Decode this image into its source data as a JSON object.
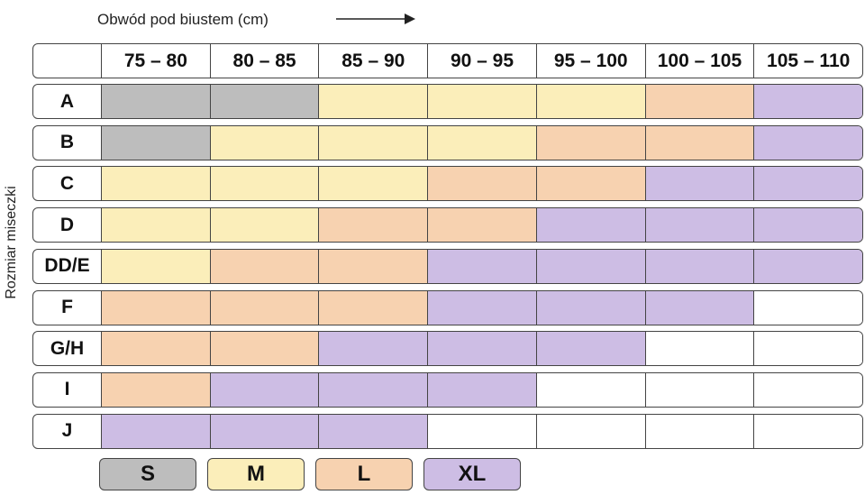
{
  "chart_data": {
    "type": "table",
    "xlabel": "Obwód pod biustem (cm)",
    "ylabel": "Rozmiar miseczki",
    "columns": [
      "75 – 80",
      "80 – 85",
      "85 – 90",
      "90 – 95",
      "95 – 100",
      "100 – 105",
      "105 – 110"
    ],
    "rows": [
      {
        "label": "A",
        "cells": [
          "S",
          "S",
          "M",
          "M",
          "M",
          "L",
          "XL"
        ]
      },
      {
        "label": "B",
        "cells": [
          "S",
          "M",
          "M",
          "M",
          "L",
          "L",
          "XL"
        ]
      },
      {
        "label": "C",
        "cells": [
          "M",
          "M",
          "M",
          "L",
          "L",
          "XL",
          "XL"
        ]
      },
      {
        "label": "D",
        "cells": [
          "M",
          "M",
          "L",
          "L",
          "XL",
          "XL",
          "XL"
        ]
      },
      {
        "label": "DD/E",
        "cells": [
          "M",
          "L",
          "L",
          "XL",
          "XL",
          "XL",
          "XL"
        ]
      },
      {
        "label": "F",
        "cells": [
          "L",
          "L",
          "L",
          "XL",
          "XL",
          "XL",
          ""
        ]
      },
      {
        "label": "G/H",
        "cells": [
          "L",
          "L",
          "XL",
          "XL",
          "XL",
          "",
          ""
        ]
      },
      {
        "label": "I",
        "cells": [
          "L",
          "XL",
          "XL",
          "XL",
          "",
          "",
          ""
        ]
      },
      {
        "label": "J",
        "cells": [
          "XL",
          "XL",
          "XL",
          "",
          "",
          "",
          ""
        ]
      }
    ],
    "legend": [
      {
        "label": "S",
        "color": "#bdbdbd"
      },
      {
        "label": "M",
        "color": "#fbeeba"
      },
      {
        "label": "L",
        "color": "#f7d2b0"
      },
      {
        "label": "XL",
        "color": "#cdbde4"
      }
    ]
  }
}
